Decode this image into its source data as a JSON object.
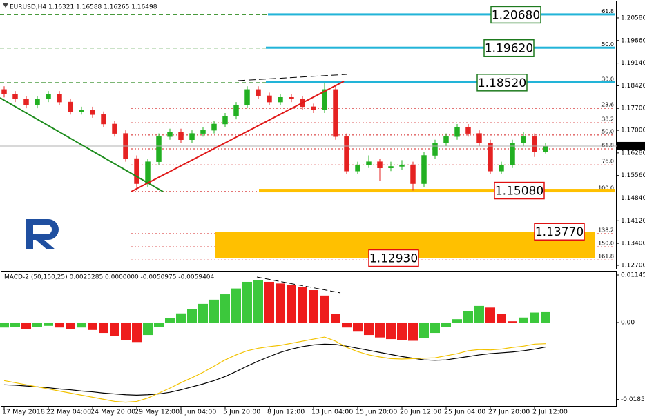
{
  "chart_data": [
    {
      "type": "candlestick",
      "title": "EURUSD,H4  1.16321 1.16588 1.16265 1.16498",
      "categories": [
        "17 May 2018",
        null,
        null,
        null,
        "22 May 04:00",
        null,
        null,
        null,
        "24 May 20:00",
        null,
        null,
        null,
        "29 May 12:00",
        null,
        null,
        null,
        "1 Jun 04:00",
        null,
        null,
        null,
        "5 Jun 20:00",
        null,
        null,
        null,
        "8 Jun 12:00",
        null,
        null,
        null,
        "13 Jun 04:00",
        null,
        null,
        null,
        "15 Jun 20:00",
        null,
        null,
        null,
        "20 Jun 12:00",
        null,
        null,
        null,
        "25 Jun 04:00",
        null,
        null,
        null,
        "27 Jun 20:00",
        null,
        null,
        null,
        "2 Jul 12:00",
        null
      ],
      "ohlc": [
        [
          1.183,
          1.184,
          1.1805,
          1.1815
        ],
        [
          1.1815,
          1.1825,
          1.179,
          1.18
        ],
        [
          1.18,
          1.181,
          1.177,
          1.178
        ],
        [
          1.178,
          1.181,
          1.177,
          1.18
        ],
        [
          1.18,
          1.1825,
          1.179,
          1.1815
        ],
        [
          1.1815,
          1.1825,
          1.178,
          1.179
        ],
        [
          1.179,
          1.18,
          1.175,
          1.176
        ],
        [
          1.176,
          1.1775,
          1.175,
          1.1765
        ],
        [
          1.1765,
          1.1775,
          1.174,
          1.175
        ],
        [
          1.175,
          1.176,
          1.171,
          1.172
        ],
        [
          1.172,
          1.173,
          1.168,
          1.169
        ],
        [
          1.169,
          1.17,
          1.16,
          1.161
        ],
        [
          1.161,
          1.162,
          1.1508,
          1.153
        ],
        [
          1.153,
          1.161,
          1.152,
          1.16
        ],
        [
          1.16,
          1.169,
          1.159,
          1.168
        ],
        [
          1.168,
          1.1705,
          1.167,
          1.1695
        ],
        [
          1.1695,
          1.1705,
          1.166,
          1.167
        ],
        [
          1.167,
          1.17,
          1.166,
          1.169
        ],
        [
          1.169,
          1.171,
          1.168,
          1.17
        ],
        [
          1.17,
          1.173,
          1.169,
          1.172
        ],
        [
          1.172,
          1.1755,
          1.171,
          1.1745
        ],
        [
          1.1745,
          1.179,
          1.1735,
          1.178
        ],
        [
          1.178,
          1.184,
          1.177,
          1.183
        ],
        [
          1.183,
          1.184,
          1.18,
          1.181
        ],
        [
          1.181,
          1.182,
          1.178,
          1.179
        ],
        [
          1.179,
          1.1815,
          1.178,
          1.1805
        ],
        [
          1.1805,
          1.1815,
          1.179,
          1.18
        ],
        [
          1.18,
          1.181,
          1.1765,
          1.1775
        ],
        [
          1.1775,
          1.1785,
          1.1755,
          1.1765
        ],
        [
          1.1765,
          1.185,
          1.1755,
          1.183
        ],
        [
          1.183,
          1.184,
          1.167,
          1.168
        ],
        [
          1.168,
          1.169,
          1.156,
          1.157
        ],
        [
          1.157,
          1.16,
          1.156,
          1.159
        ],
        [
          1.159,
          1.162,
          1.158,
          1.16
        ],
        [
          1.16,
          1.161,
          1.154,
          1.158
        ],
        [
          1.158,
          1.16,
          1.157,
          1.1585
        ],
        [
          1.1585,
          1.1605,
          1.1575,
          1.159
        ],
        [
          1.159,
          1.16,
          1.1508,
          1.153
        ],
        [
          1.153,
          1.163,
          1.152,
          1.162
        ],
        [
          1.162,
          1.167,
          1.161,
          1.166
        ],
        [
          1.166,
          1.169,
          1.165,
          1.168
        ],
        [
          1.168,
          1.172,
          1.167,
          1.171
        ],
        [
          1.171,
          1.172,
          1.168,
          1.169
        ],
        [
          1.169,
          1.17,
          1.165,
          1.166
        ],
        [
          1.166,
          1.167,
          1.156,
          1.157
        ],
        [
          1.157,
          1.16,
          1.156,
          1.159
        ],
        [
          1.159,
          1.167,
          1.158,
          1.166
        ],
        [
          1.166,
          1.1695,
          1.165,
          1.168
        ],
        [
          1.168,
          1.169,
          1.1615,
          1.1632
        ],
        [
          1.16321,
          1.16588,
          1.16265,
          1.16498
        ]
      ],
      "up_color": "#22b022",
      "down_color": "#e52222",
      "ylim": [
        1.1259,
        1.2115
      ],
      "yticks": [
        {
          "value": 1.2058,
          "label": "1.20580"
        },
        {
          "value": 1.1986,
          "label": "1.19860"
        },
        {
          "value": 1.1914,
          "label": "1.19140"
        },
        {
          "value": 1.1842,
          "label": "1.18420"
        },
        {
          "value": 1.177,
          "label": "1.17700"
        },
        {
          "value": 1.17,
          "label": "1.17000"
        },
        {
          "value": 1.1628,
          "label": "1.16280"
        },
        {
          "value": 1.1556,
          "label": "1.15560"
        },
        {
          "value": 1.1484,
          "label": "1.14840"
        },
        {
          "value": 1.1412,
          "label": "1.14120"
        },
        {
          "value": 1.134,
          "label": "1.13400"
        },
        {
          "value": 1.127,
          "label": "1.12700"
        }
      ],
      "fib_upper": {
        "color": "#2e8b20",
        "levels": [
          {
            "value": 1.2068,
            "label": "61.8"
          },
          {
            "value": 1.1962,
            "label": "50.0"
          },
          {
            "value": 1.1852,
            "label": "30.0"
          }
        ]
      },
      "fib_lower": {
        "color": "#d42020",
        "levels": [
          {
            "value": 1.177,
            "label": "23.6"
          },
          {
            "value": 1.1724,
            "label": "38.2"
          },
          {
            "value": 1.1685,
            "label": "50.0"
          },
          {
            "value": 1.1641,
            "label": "61.8"
          },
          {
            "value": 1.159,
            "label": "76.0"
          },
          {
            "value": 1.1505,
            "label": "100.0"
          },
          {
            "value": 1.1371,
            "label": "138.2"
          },
          {
            "value": 1.1329,
            "label": "150.0"
          },
          {
            "value": 1.1287,
            "label": "161.8"
          }
        ]
      },
      "targets": [
        {
          "value": 1.2068,
          "label": "1.20680",
          "color": "#1e7a1e",
          "band": "#22b4d8"
        },
        {
          "value": 1.1962,
          "label": "1.19620",
          "color": "#1e7a1e",
          "band": "#22b4d8"
        },
        {
          "value": 1.1852,
          "label": "1.18520",
          "color": "#1e7a1e",
          "band": "#22b4d8"
        },
        {
          "value": 1.1508,
          "label": "1.15080",
          "color": "#e01010",
          "band": "#ffc000"
        },
        {
          "value": 1.1377,
          "label": "1.13770",
          "color": "#e01010",
          "band": "#ffc000"
        },
        {
          "value": 1.1293,
          "label": "1.12930",
          "color": "#e01010",
          "band": "#ffc000"
        }
      ]
    },
    {
      "type": "macd",
      "title": "MACD-2 (50,150,25) 0.0025285 0.0000000 -0.0050975 -0.0059404",
      "values": [
        -0.0012,
        -0.001,
        -0.0015,
        -0.001,
        -0.0008,
        -0.0012,
        -0.0015,
        -0.0012,
        -0.0018,
        -0.0025,
        -0.0033,
        -0.0042,
        -0.0047,
        -0.003,
        -0.001,
        0.001,
        0.0022,
        0.0032,
        0.0045,
        0.0055,
        0.0068,
        0.0082,
        0.0098,
        0.0102,
        0.0098,
        0.0094,
        0.009,
        0.0085,
        0.0078,
        0.0065,
        0.002,
        -0.0012,
        -0.0022,
        -0.003,
        -0.0036,
        -0.004,
        -0.0042,
        -0.0044,
        -0.0038,
        -0.0025,
        -0.001,
        0.0008,
        0.0028,
        0.004,
        0.0036,
        0.002,
        0.0003,
        0.0012,
        0.0024,
        0.0025
      ],
      "up_color": "#3cc83c",
      "down_color": "#ee1c1c",
      "series": [
        {
          "color": "#000000",
          "values": [
            -0.015,
            -0.0151,
            -0.0153,
            -0.0155,
            -0.0157,
            -0.016,
            -0.0162,
            -0.0165,
            -0.0167,
            -0.017,
            -0.0172,
            -0.0174,
            -0.0175,
            -0.0174,
            -0.0172,
            -0.0168,
            -0.0162,
            -0.0155,
            -0.0148,
            -0.014,
            -0.013,
            -0.0118,
            -0.0105,
            -0.0093,
            -0.0082,
            -0.0072,
            -0.0064,
            -0.0058,
            -0.0054,
            -0.0052,
            -0.0053,
            -0.0057,
            -0.0062,
            -0.0067,
            -0.0072,
            -0.0077,
            -0.0082,
            -0.0086,
            -0.009,
            -0.0091,
            -0.009,
            -0.0086,
            -0.0082,
            -0.0078,
            -0.0075,
            -0.0073,
            -0.0071,
            -0.0068,
            -0.0064,
            -0.0059
          ]
        },
        {
          "color": "#f2c200",
          "values": [
            -0.014,
            -0.0145,
            -0.015,
            -0.0155,
            -0.016,
            -0.0165,
            -0.017,
            -0.0175,
            -0.018,
            -0.0185,
            -0.019,
            -0.0192,
            -0.019,
            -0.0182,
            -0.017,
            -0.0158,
            -0.0145,
            -0.0133,
            -0.012,
            -0.0105,
            -0.009,
            -0.0078,
            -0.0068,
            -0.0062,
            -0.0058,
            -0.0055,
            -0.005,
            -0.0045,
            -0.004,
            -0.0035,
            -0.0045,
            -0.006,
            -0.007,
            -0.0078,
            -0.0083,
            -0.0087,
            -0.0088,
            -0.0087,
            -0.0086,
            -0.0085,
            -0.008,
            -0.0075,
            -0.0068,
            -0.0065,
            -0.0066,
            -0.0064,
            -0.006,
            -0.0057,
            -0.0052,
            -0.0051
          ]
        }
      ],
      "ylim": [
        -0.02026,
        0.01212
      ],
      "yticks": [
        0.011456,
        {
          "value": 0,
          "label": "0.00"
        },
        -0.018533
      ]
    }
  ]
}
